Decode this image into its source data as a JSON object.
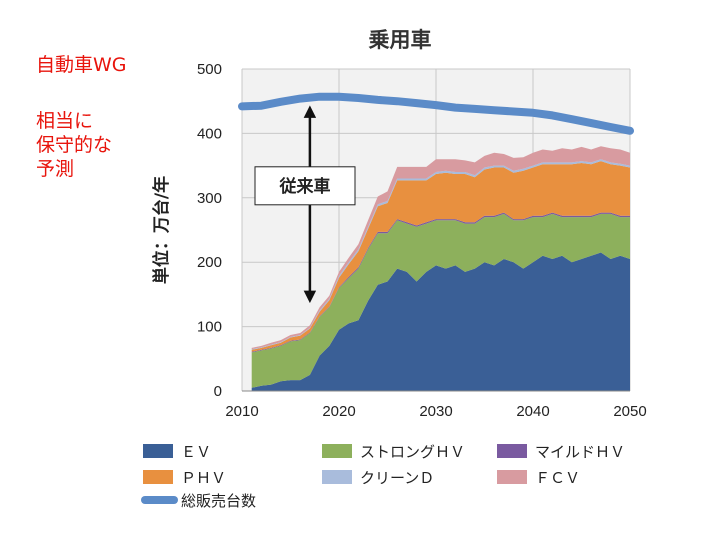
{
  "side_notes": {
    "line1": "自動車WG",
    "line2": "相当に",
    "line3": "保守的な",
    "line4": "予測"
  },
  "chart_data": {
    "type": "area",
    "title": "乗用車",
    "xlabel": "",
    "ylabel": "単位：万台/年",
    "xlim": [
      2010,
      2050
    ],
    "ylim": [
      0,
      500
    ],
    "x_ticks": [
      "2010",
      "2020",
      "2030",
      "2040",
      "2050"
    ],
    "y_ticks": [
      "0",
      "100",
      "200",
      "300",
      "400",
      "500"
    ],
    "stacked": true,
    "x": [
      2011,
      2012,
      2013,
      2014,
      2015,
      2016,
      2017,
      2018,
      2019,
      2020,
      2021,
      2022,
      2023,
      2024,
      2025,
      2026,
      2027,
      2028,
      2029,
      2030,
      2031,
      2032,
      2033,
      2034,
      2035,
      2036,
      2037,
      2038,
      2039,
      2040,
      2041,
      2042,
      2043,
      2044,
      2045,
      2046,
      2047,
      2048,
      2049,
      2050
    ],
    "series": [
      {
        "name": "ＥＶ",
        "color": "#3a5f96",
        "values": [
          5,
          8,
          10,
          15,
          17,
          17,
          25,
          55,
          70,
          95,
          105,
          110,
          140,
          165,
          170,
          190,
          185,
          170,
          185,
          195,
          190,
          195,
          185,
          190,
          200,
          195,
          205,
          200,
          190,
          200,
          210,
          205,
          210,
          200,
          205,
          210,
          215,
          205,
          210,
          205
        ]
      },
      {
        "name": "ストロングＨＶ",
        "color": "#8db05c",
        "values": [
          55,
          55,
          56,
          55,
          60,
          62,
          65,
          60,
          60,
          65,
          70,
          80,
          80,
          80,
          75,
          75,
          75,
          85,
          75,
          70,
          75,
          70,
          75,
          70,
          70,
          75,
          70,
          65,
          75,
          70,
          60,
          70,
          60,
          70,
          65,
          60,
          60,
          70,
          60,
          65
        ]
      },
      {
        "name": "マイルドＨＶ",
        "color": "#7a5aa0",
        "values": [
          1,
          1,
          1,
          1,
          1,
          1,
          1,
          1,
          1,
          1,
          2,
          2,
          2,
          2,
          2,
          2,
          2,
          2,
          2,
          2,
          2,
          2,
          2,
          2,
          2,
          2,
          2,
          2,
          2,
          2,
          2,
          2,
          2,
          2,
          2,
          2,
          2,
          2,
          2,
          2
        ]
      },
      {
        "name": "ＰＨＶ",
        "color": "#e8903f",
        "values": [
          3,
          3,
          4,
          4,
          5,
          6,
          6,
          7,
          10,
          15,
          20,
          25,
          30,
          40,
          45,
          60,
          65,
          70,
          65,
          70,
          72,
          70,
          75,
          70,
          72,
          75,
          70,
          72,
          75,
          75,
          80,
          75,
          80,
          80,
          82,
          80,
          80,
          75,
          78,
          75
        ]
      },
      {
        "name": "クリーンＤ",
        "color": "#a9bcdc",
        "values": [
          1,
          1,
          1,
          1,
          1,
          1,
          1,
          2,
          2,
          3,
          3,
          3,
          3,
          3,
          3,
          3,
          3,
          3,
          3,
          3,
          3,
          3,
          3,
          3,
          3,
          3,
          3,
          3,
          3,
          3,
          3,
          3,
          3,
          3,
          3,
          3,
          3,
          3,
          3,
          3
        ]
      },
      {
        "name": "ＦＣＶ",
        "color": "#d89ba0",
        "values": [
          2,
          2,
          3,
          3,
          3,
          3,
          4,
          5,
          5,
          6,
          7,
          8,
          10,
          12,
          15,
          18,
          18,
          18,
          18,
          20,
          18,
          20,
          18,
          20,
          18,
          20,
          18,
          20,
          18,
          20,
          20,
          18,
          22,
          20,
          22,
          20,
          20,
          22,
          22,
          20
        ]
      }
    ],
    "total_line": {
      "name": "総販売台数",
      "color": "#5b8bc8",
      "x": [
        2010,
        2012,
        2014,
        2016,
        2018,
        2020,
        2022,
        2024,
        2026,
        2028,
        2030,
        2032,
        2034,
        2036,
        2038,
        2040,
        2042,
        2044,
        2046,
        2048,
        2050
      ],
      "values": [
        442,
        443,
        449,
        454,
        457,
        457,
        455,
        452,
        450,
        447,
        444,
        440,
        438,
        436,
        434,
        432,
        428,
        422,
        416,
        410,
        404
      ]
    },
    "annotation": {
      "text": "従来車",
      "x_year": 2017,
      "from_value": 140,
      "to_value": 440
    },
    "legend": {
      "placement": "bottom",
      "items": [
        "ＥＶ",
        "ストロングＨＶ",
        "マイルドＨＶ",
        "ＰＨＶ",
        "クリーンＤ",
        "ＦＣＶ",
        "総販売台数"
      ]
    }
  }
}
